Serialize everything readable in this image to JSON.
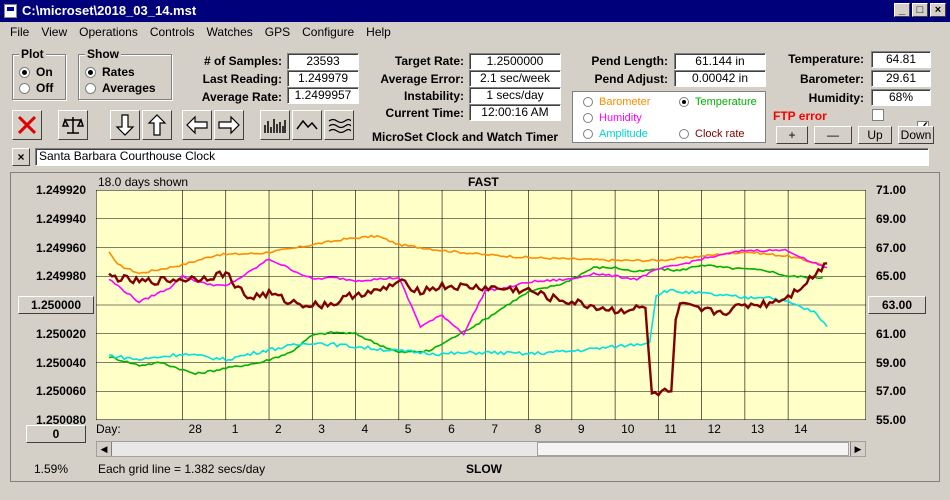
{
  "window": {
    "title": "C:\\microset\\2018_03_14.mst"
  },
  "menu": [
    "File",
    "View",
    "Operations",
    "Controls",
    "Watches",
    "GPS",
    "Configure",
    "Help"
  ],
  "plot_group": {
    "title": "Plot",
    "on": "On",
    "off": "Off",
    "selected": "On"
  },
  "show_group": {
    "title": "Show",
    "rates": "Rates",
    "averages": "Averages",
    "selected": "Rates"
  },
  "stats": {
    "samples_label": "# of Samples:",
    "samples": "23593",
    "last_label": "Last Reading:",
    "last": "1.249979",
    "avgrate_label": "Average Rate:",
    "avgrate": "1.2499957"
  },
  "target": {
    "target_label": "Target Rate:",
    "target": "1.2500000",
    "avgerr_label": "Average Error:",
    "avgerr": "2.1 sec/week",
    "instab_label": "Instability:",
    "instab": "1 secs/day",
    "time_label": "Current Time:",
    "time": "12:00:16 AM",
    "app_name": "MicroSet Clock and Watch Timer"
  },
  "pend": {
    "length_label": "Pend Length:",
    "length": "61.144 in",
    "adjust_label": "Pend Adjust:",
    "adjust": "0.00042 in"
  },
  "sensors": {
    "temp_label": "Temperature:",
    "temp": "64.81",
    "baro_label": "Barometer:",
    "baro": "29.61",
    "hum_label": "Humidity:",
    "hum": "68%",
    "ftp": "FTP error"
  },
  "legend": {
    "barometer": "Barometer",
    "temperature": "Temperature",
    "humidity": "Humidity",
    "amplitude": "Amplitude",
    "clockrate": "Clock rate",
    "selected": "Temperature"
  },
  "scale_buttons": {
    "plus": "+",
    "minus": "—",
    "up": "Up",
    "down": "Down"
  },
  "clock_name": "Santa Barbara Courthouse Clock",
  "plot": {
    "days_shown": "18.0 days shown",
    "top_label": "FAST",
    "bottom_label": "SLOW",
    "grid_note": "Each grid line = 1.382 secs/day",
    "percent": "1.59%",
    "left_button": "0",
    "right_button": "63.00",
    "center_button": "1.250000",
    "day_prefix": "Day:"
  },
  "colors": {
    "barometer": "#ff8c00",
    "temperature": "#00b000",
    "humidity": "#ff00ff",
    "amplitude": "#00e0e0",
    "clockrate": "#800000",
    "ftp": "#ff0000",
    "plot_bg": "#ffffc8"
  },
  "chart_data": {
    "type": "line",
    "x_label": "Day",
    "x_ticks": [
      "28",
      "1",
      "2",
      "3",
      "4",
      "5",
      "6",
      "7",
      "8",
      "9",
      "10",
      "11",
      "12",
      "13",
      "14"
    ],
    "left_axis": [
      "1.249920",
      "1.249940",
      "1.249960",
      "1.249980",
      "1.250000",
      "1.250020",
      "1.250040",
      "1.250060",
      "1.250080"
    ],
    "right_axis": [
      "71.00",
      "69.00",
      "67.00",
      "65.00",
      "63.00",
      "61.00",
      "59.00",
      "57.00",
      "55.00"
    ],
    "ylim_right": [
      55,
      71
    ],
    "x_range": [
      -1,
      15.8
    ],
    "series": [
      {
        "name": "Barometer",
        "color": "#ff8c00",
        "points": [
          [
            -1.7,
            66.7
          ],
          [
            -1.5,
            65.8
          ],
          [
            -1,
            65.2
          ],
          [
            0,
            65.8
          ],
          [
            0.8,
            66.5
          ],
          [
            1.8,
            66.6
          ],
          [
            2.5,
            66.9
          ],
          [
            3,
            67.2
          ],
          [
            3.8,
            67.6
          ],
          [
            4.5,
            67.8
          ],
          [
            5,
            67.2
          ],
          [
            6,
            66.8
          ],
          [
            7,
            66.5
          ],
          [
            8,
            66.3
          ],
          [
            9,
            66.2
          ],
          [
            10,
            66.1
          ],
          [
            11,
            66.1
          ],
          [
            12,
            66.4
          ],
          [
            13,
            66.7
          ],
          [
            14,
            66.4
          ],
          [
            14.8,
            65.8
          ]
        ]
      },
      {
        "name": "Temperature",
        "color": "#00b000",
        "points": [
          [
            -1.7,
            59.4
          ],
          [
            -1,
            58.8
          ],
          [
            -0.5,
            59.0
          ],
          [
            0.3,
            58.2
          ],
          [
            1,
            58.6
          ],
          [
            1.8,
            59.0
          ],
          [
            2.5,
            59.7
          ],
          [
            3,
            60.9
          ],
          [
            3.5,
            61.1
          ],
          [
            4,
            61.0
          ],
          [
            4.5,
            60.3
          ],
          [
            5,
            59.7
          ],
          [
            5.7,
            59.8
          ],
          [
            6.3,
            60.8
          ],
          [
            7,
            62.0
          ],
          [
            7.5,
            63.0
          ],
          [
            8,
            63.9
          ],
          [
            8.8,
            64.5
          ],
          [
            9.5,
            65.6
          ],
          [
            10,
            65.6
          ],
          [
            10.5,
            65.3
          ],
          [
            11,
            65.5
          ],
          [
            11.5,
            65.4
          ],
          [
            12,
            65.8
          ],
          [
            12.5,
            65.6
          ],
          [
            13,
            65.5
          ],
          [
            13.5,
            65.4
          ],
          [
            14,
            65.0
          ],
          [
            14.8,
            64.9
          ]
        ]
      },
      {
        "name": "Humidity",
        "color": "#ff00ff",
        "points": [
          [
            -1.7,
            64.8
          ],
          [
            -1,
            63.2
          ],
          [
            -0.3,
            64.2
          ],
          [
            0,
            65.0
          ],
          [
            0.5,
            64.5
          ],
          [
            1,
            64.3
          ],
          [
            1.5,
            65.2
          ],
          [
            2,
            66.2
          ],
          [
            2.5,
            65.5
          ],
          [
            3,
            64.8
          ],
          [
            3.5,
            64.9
          ],
          [
            4,
            64.7
          ],
          [
            4.5,
            64.8
          ],
          [
            5,
            64.9
          ],
          [
            5.5,
            61.5
          ],
          [
            6,
            62.3
          ],
          [
            6.5,
            61.0
          ],
          [
            7,
            64.0
          ],
          [
            7.5,
            64.2
          ],
          [
            8,
            64.6
          ],
          [
            9,
            64.8
          ],
          [
            9.5,
            65.2
          ],
          [
            10,
            65.0
          ],
          [
            10.5,
            64.8
          ],
          [
            11,
            65.5
          ],
          [
            11.5,
            65.8
          ],
          [
            12,
            66.2
          ],
          [
            13,
            66.8
          ],
          [
            14,
            66.8
          ],
          [
            14.5,
            66.0
          ],
          [
            14.9,
            65.6
          ]
        ]
      },
      {
        "name": "Amplitude",
        "color": "#00e0e0",
        "points": [
          [
            -1.7,
            59.5
          ],
          [
            -1,
            59.2
          ],
          [
            0,
            59.6
          ],
          [
            1,
            59.2
          ],
          [
            2,
            59.9
          ],
          [
            3,
            60.4
          ],
          [
            4,
            60.1
          ],
          [
            5,
            59.8
          ],
          [
            6,
            59.6
          ],
          [
            7,
            59.7
          ],
          [
            8,
            59.6
          ],
          [
            9,
            59.8
          ],
          [
            10,
            60.1
          ],
          [
            10.8,
            60.4
          ],
          [
            10.95,
            63.7
          ],
          [
            11.2,
            64.0
          ],
          [
            12,
            63.8
          ],
          [
            13,
            63.5
          ],
          [
            13.5,
            63.6
          ],
          [
            14,
            63.2
          ],
          [
            14.6,
            62.5
          ],
          [
            14.9,
            61.5
          ]
        ]
      },
      {
        "name": "Clock rate",
        "color": "#800000",
        "points": [
          [
            -1.7,
            65.0
          ],
          [
            -1,
            64.6
          ],
          [
            -0.5,
            64.7
          ],
          [
            0,
            64.8
          ],
          [
            0.5,
            64.9
          ],
          [
            1,
            65.2
          ],
          [
            1.5,
            63.5
          ],
          [
            2,
            63.8
          ],
          [
            2.5,
            63.2
          ],
          [
            3,
            63.0
          ],
          [
            3.5,
            63.1
          ],
          [
            4,
            63.8
          ],
          [
            4.5,
            63.9
          ],
          [
            5,
            64.6
          ],
          [
            5.5,
            64.0
          ],
          [
            6,
            64.3
          ],
          [
            7,
            64.2
          ],
          [
            8,
            64.0
          ],
          [
            8.5,
            63.5
          ],
          [
            9,
            63.2
          ],
          [
            9.5,
            62.9
          ],
          [
            10,
            62.6
          ],
          [
            10.7,
            62.8
          ],
          [
            10.85,
            56.8
          ],
          [
            11.3,
            57.0
          ],
          [
            11.4,
            62.0
          ],
          [
            11.5,
            63.0
          ],
          [
            12,
            62.6
          ],
          [
            12.5,
            62.5
          ],
          [
            13,
            63.0
          ],
          [
            13.5,
            63.1
          ],
          [
            14,
            63.6
          ],
          [
            14.5,
            64.8
          ],
          [
            14.9,
            65.9
          ]
        ]
      }
    ]
  }
}
